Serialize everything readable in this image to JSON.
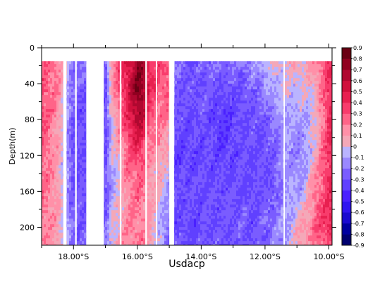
{
  "chart_data": {
    "type": "heatmap",
    "title": "",
    "xlabel": "Usdacp",
    "ylabel": "Depth(m)",
    "x_unit": "°S",
    "xlim": [
      19.0,
      9.9
    ],
    "ylim": [
      0,
      220
    ],
    "x_ticks": [
      18,
      16,
      14,
      12,
      10
    ],
    "x_tick_labels": [
      "18.00°S",
      "16.00°S",
      "14.00°S",
      "12.00°S",
      "10.00°S"
    ],
    "y_ticks": [
      0,
      40,
      80,
      120,
      160,
      200
    ],
    "y_tick_labels": [
      "0",
      "40",
      "80",
      "120",
      "160",
      "200"
    ],
    "data_depth_range": [
      15,
      220
    ],
    "gaps_lat": [
      [
        18.32,
        18.22
      ],
      [
        17.95,
        17.9
      ],
      [
        17.6,
        17.05
      ],
      [
        16.55,
        16.5
      ],
      [
        15.75,
        15.7
      ],
      [
        15.42,
        15.38
      ],
      [
        15.0,
        14.85
      ],
      [
        11.42,
        11.38
      ]
    ],
    "colorbar": {
      "levels": [
        -0.9,
        -0.8,
        -0.7,
        -0.6,
        -0.5,
        -0.4,
        -0.3,
        -0.2,
        -0.1,
        0,
        0.1,
        0.2,
        0.3,
        0.4,
        0.5,
        0.6,
        0.7,
        0.8,
        0.9
      ],
      "labels": [
        "-0.9",
        "-0.8",
        "-0.7",
        "-0.6",
        "-0.5",
        "-0.4",
        "-0.3",
        "-0.2",
        "-0.1",
        "0",
        "0.1",
        "0.2",
        "0.3",
        "0.4",
        "0.5",
        "0.6",
        "0.7",
        "0.8",
        "0.9"
      ],
      "colors": [
        "#000070",
        "#0000a0",
        "#1a0ad0",
        "#3014f0",
        "#4a20ff",
        "#6040ff",
        "#7a5cff",
        "#9a88ff",
        "#bab4ff",
        "#f4a8b8",
        "#ff90a8",
        "#ff6488",
        "#f83c6c",
        "#e82050",
        "#d0103c",
        "#b00830",
        "#900020",
        "#6a0014"
      ]
    },
    "profile_lat": [
      18.95,
      18.5,
      18.0,
      17.0,
      16.8,
      16.2,
      16.0,
      15.85,
      15.6,
      15.3,
      15.05,
      14.8,
      14.3,
      13.8,
      13.3,
      12.8,
      12.3,
      11.8,
      11.3,
      10.9,
      10.7,
      10.4,
      10.0
    ],
    "profile_depth": [
      15,
      40,
      80,
      120,
      160,
      200,
      220
    ],
    "values": [
      [
        0.3,
        0.3,
        0.3,
        0.25,
        0.25,
        0.2,
        0.2
      ],
      [
        0.2,
        0.2,
        0.15,
        0.1,
        0.1,
        0.1,
        0.1
      ],
      [
        -0.2,
        -0.25,
        -0.3,
        -0.3,
        -0.3,
        -0.25,
        -0.25
      ],
      [
        -0.3,
        -0.3,
        -0.35,
        -0.3,
        -0.3,
        -0.25,
        -0.2
      ],
      [
        0.2,
        0.1,
        0.0,
        -0.05,
        -0.1,
        0.0,
        0.05
      ],
      [
        0.55,
        0.6,
        0.5,
        0.3,
        0.2,
        0.2,
        0.15
      ],
      [
        0.7,
        0.8,
        0.65,
        0.35,
        0.25,
        0.2,
        0.2
      ],
      [
        0.7,
        0.75,
        0.6,
        0.3,
        0.2,
        0.2,
        0.2
      ],
      [
        0.4,
        0.4,
        0.3,
        0.15,
        0.1,
        0.1,
        0.1
      ],
      [
        0.3,
        0.3,
        0.2,
        0.1,
        0.0,
        -0.05,
        -0.1
      ],
      [
        0.3,
        0.3,
        0.2,
        0.05,
        -0.1,
        -0.2,
        -0.2
      ],
      [
        -0.2,
        -0.25,
        -0.3,
        -0.35,
        -0.3,
        -0.3,
        -0.25
      ],
      [
        -0.3,
        -0.3,
        -0.3,
        -0.35,
        -0.3,
        -0.35,
        -0.3
      ],
      [
        -0.2,
        -0.25,
        -0.3,
        -0.3,
        -0.3,
        -0.3,
        -0.25
      ],
      [
        -0.2,
        -0.3,
        -0.4,
        -0.35,
        -0.3,
        -0.3,
        -0.3
      ],
      [
        -0.2,
        -0.3,
        -0.3,
        -0.3,
        -0.3,
        -0.25,
        -0.3
      ],
      [
        -0.1,
        -0.2,
        -0.3,
        -0.3,
        -0.3,
        -0.3,
        -0.3
      ],
      [
        0.0,
        -0.1,
        -0.2,
        -0.3,
        -0.3,
        -0.2,
        -0.2
      ],
      [
        0.05,
        0.0,
        -0.1,
        -0.1,
        -0.1,
        -0.1,
        -0.1
      ],
      [
        0.05,
        0.0,
        -0.1,
        -0.2,
        -0.1,
        0.1,
        0.1
      ],
      [
        0.1,
        0.0,
        -0.1,
        -0.1,
        0.0,
        0.1,
        0.1
      ],
      [
        0.2,
        0.1,
        0.0,
        0.1,
        0.2,
        0.3,
        0.2
      ],
      [
        0.4,
        0.4,
        0.4,
        0.4,
        0.4,
        0.4,
        0.3
      ]
    ]
  }
}
